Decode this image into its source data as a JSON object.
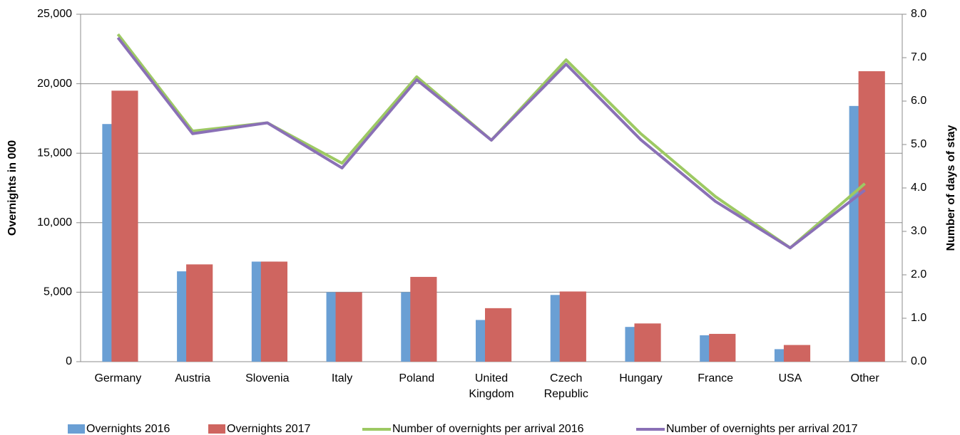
{
  "chart_data": {
    "type": "bar_line",
    "categories": [
      "Germany",
      "Austria",
      "Slovenia",
      "Italy",
      "Poland",
      "United Kingdom",
      "Czech Republic",
      "Hungary",
      "France",
      "USA",
      "Other"
    ],
    "y_label": "Overnights in 000",
    "y2_label": "Number of days of stay",
    "ylim": [
      0,
      25000
    ],
    "yticks": [
      0,
      {
        "value": 5000,
        "label": "5,000"
      },
      {
        "value": 10000,
        "label": "10,000"
      },
      {
        "value": 15000,
        "label": "15,000"
      },
      {
        "value": 20000,
        "label": "20,000"
      },
      {
        "value": 25000,
        "label": "25,000"
      }
    ],
    "y2lim": [
      0,
      8
    ],
    "y2ticks": [
      {
        "value": 0,
        "label": "0.0"
      },
      {
        "value": 1,
        "label": "1.0"
      },
      {
        "value": 2,
        "label": "2.0"
      },
      {
        "value": 3,
        "label": "3.0"
      },
      {
        "value": 4,
        "label": "4.0"
      },
      {
        "value": 5,
        "label": "5.0"
      },
      {
        "value": 6,
        "label": "6.0"
      },
      {
        "value": 7,
        "label": "7.0"
      },
      {
        "value": 8,
        "label": "8.0"
      }
    ],
    "grid": true,
    "legend": "bottom",
    "series": [
      {
        "name": "Overnights 2016",
        "type": "bar",
        "color": "#6a9fd4",
        "values": [
          17100,
          6500,
          7200,
          5000,
          5000,
          3000,
          4800,
          2500,
          1900,
          900,
          18400
        ]
      },
      {
        "name": "Overnights 2017",
        "type": "bar",
        "color": "#cf6560",
        "values": [
          19500,
          7000,
          7200,
          5000,
          6100,
          3850,
          5050,
          2750,
          2000,
          1200,
          20900
        ]
      },
      {
        "name": "Number of overnights per arrival 2016",
        "type": "line",
        "axis": "y2",
        "color": "#9dc963",
        "values": [
          7.54,
          5.31,
          5.5,
          4.57,
          6.56,
          5.1,
          6.95,
          5.25,
          3.8,
          2.62,
          4.1
        ]
      },
      {
        "name": "Number of overnights per arrival 2017",
        "type": "line",
        "axis": "y2",
        "color": "#8a70b6",
        "values": [
          7.46,
          5.25,
          5.5,
          4.46,
          6.49,
          5.1,
          6.85,
          5.11,
          3.69,
          2.62,
          3.95
        ]
      }
    ]
  }
}
